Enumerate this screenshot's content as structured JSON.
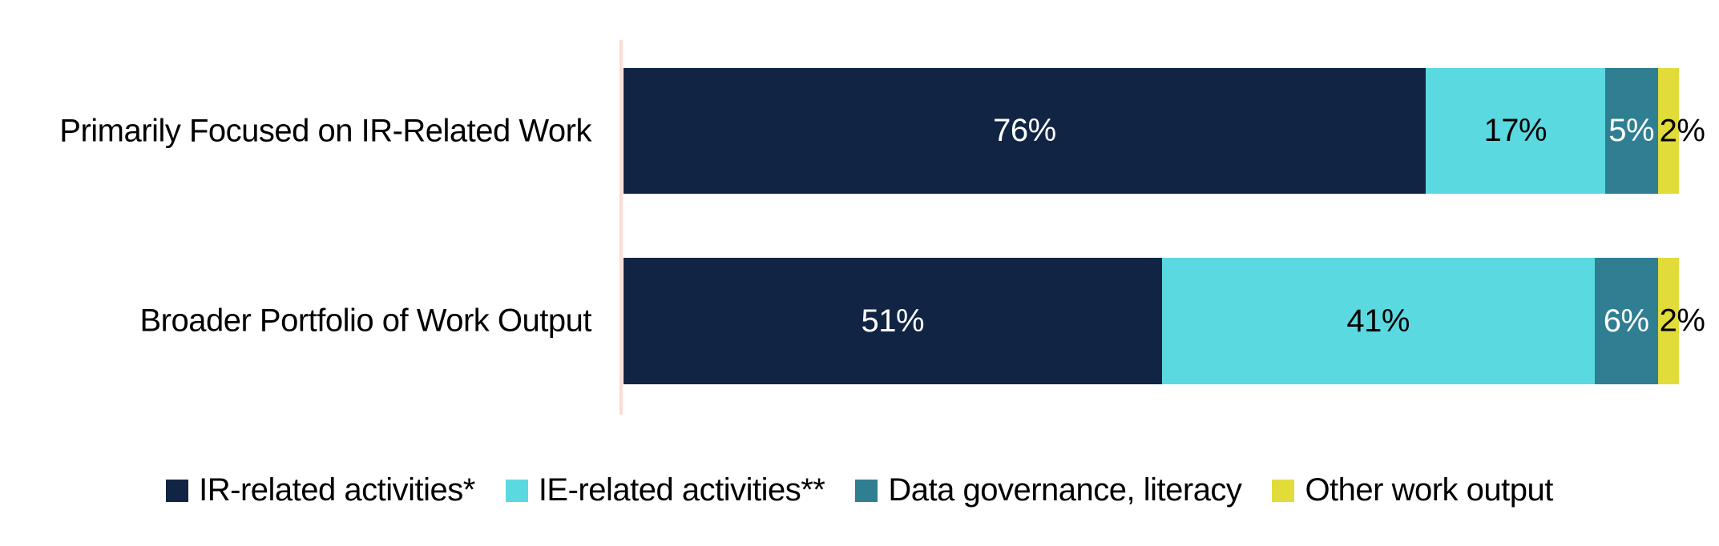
{
  "chart_data": {
    "type": "bar",
    "orientation": "horizontal_stacked",
    "title": "",
    "categories": [
      "Primarily Focused on IR-Related Work",
      "Broader Portfolio of Work Output"
    ],
    "series": [
      {
        "name": "IR-related activities*",
        "color": "#112444",
        "label_color": "#FFFFFF",
        "values": [
          76,
          51
        ],
        "labels": [
          "76%",
          "51%"
        ]
      },
      {
        "name": "IE-related activities**",
        "color": "#5BD9E0",
        "label_color": "#000000",
        "values": [
          17,
          41
        ],
        "labels": [
          "17%",
          "41%"
        ]
      },
      {
        "name": "Data governance, literacy",
        "color": "#2F7E92",
        "label_color": "#FFFFFF",
        "values": [
          5,
          6
        ],
        "labels": [
          "5%",
          "6%"
        ]
      },
      {
        "name": "Other work output",
        "color": "#E2DC3B",
        "label_color": "#000000",
        "values": [
          2,
          2
        ],
        "labels": [
          "2%",
          "2%"
        ]
      }
    ],
    "xlim": [
      0,
      100
    ],
    "grid": false,
    "axis_line_color": "#FADDD5",
    "legend_position": "bottom",
    "background_color": "#FFFFFF"
  }
}
